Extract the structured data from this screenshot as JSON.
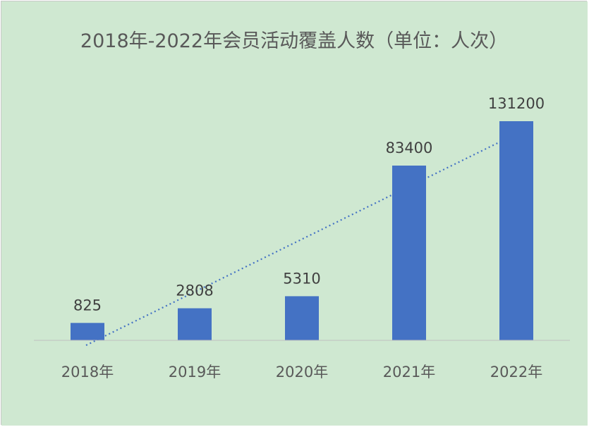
{
  "chart_data": {
    "type": "bar",
    "title": "2018年-2022年会员活动覆盖人数（单位：人次）",
    "xlabel": "",
    "ylabel": "",
    "categories": [
      "2018年",
      "2019年",
      "2020年",
      "2021年",
      "2022年"
    ],
    "values": [
      825,
      2808,
      5310,
      83400,
      131200
    ],
    "data_labels": [
      "825",
      "2808",
      "5310",
      "83400",
      "131200"
    ],
    "trendline": {
      "type": "linear",
      "style": "dotted"
    },
    "grid": false,
    "legend": "none",
    "colors": {
      "background": "#cfe8d1",
      "bar": "#4472c4",
      "trendline": "#4472c4",
      "baseline": "#bfbfbf"
    }
  }
}
